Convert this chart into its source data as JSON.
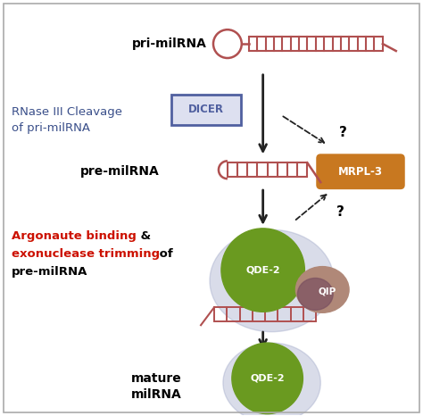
{
  "bg_color": "#ffffff",
  "border_color": "#aaaaaa",
  "rna_color": "#b05050",
  "blue_label": "#3a4f8a",
  "dicer_box_edge": "#5060a0",
  "dicer_box_fill": "#dde0f0",
  "mrpl_box_color": "#c87820",
  "arrow_color": "#222222",
  "qde2_green": "#6a9a20",
  "qde2_halo": "#a0a8c8",
  "qip_body": "#b08878",
  "qip_dark": "#7a5060",
  "red_text": "#cc1100",
  "label_pri": "pri-milRNA",
  "label_rnase_line1": "RNase III Cleavage",
  "label_rnase_line2": "of pri-milRNA",
  "label_pre": "pre-milRNA",
  "label_argonaute_red": "Argonaute binding",
  "label_exo_red": "exonuclease trimming",
  "label_mature": "mature",
  "label_milrna": "milRNA",
  "label_dicer": "DICER",
  "label_mrpl": "MRPL-3",
  "label_qde2": "QDE-2",
  "label_qip": "QIP"
}
